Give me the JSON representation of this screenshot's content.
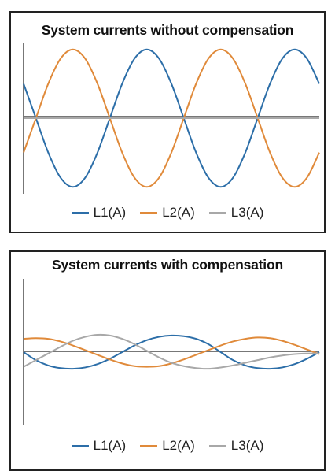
{
  "colors": {
    "L1": "#2c6ea8",
    "L2": "#e08a3a",
    "L3": "#a8a8a8",
    "axis": "#777777"
  },
  "chart_data": [
    {
      "type": "line",
      "title": "System currents without compensation",
      "xlabel": "",
      "ylabel": "",
      "grid": false,
      "legend_position": "bottom",
      "x": [
        0,
        30,
        60,
        90,
        120,
        150,
        180,
        210,
        240,
        270,
        300,
        330,
        360,
        390,
        420,
        450,
        480,
        510,
        540,
        570,
        600,
        630,
        660,
        690,
        720
      ],
      "ylim": [
        -1.1,
        1.1
      ],
      "series": [
        {
          "name": "L1(A)",
          "values": [
            0.5,
            0.0,
            -0.5,
            -0.866,
            -1.0,
            -0.866,
            -0.5,
            0.0,
            0.5,
            0.866,
            1.0,
            0.866,
            0.5,
            0.0,
            -0.5,
            -0.866,
            -1.0,
            -0.866,
            -0.5,
            0.0,
            0.5,
            0.866,
            1.0,
            0.866,
            0.5
          ]
        },
        {
          "name": "L2(A)",
          "values": [
            -0.5,
            0.0,
            0.5,
            0.866,
            1.0,
            0.866,
            0.5,
            0.0,
            -0.5,
            -0.866,
            -1.0,
            -0.866,
            -0.5,
            0.0,
            0.5,
            0.866,
            1.0,
            0.866,
            0.5,
            0.0,
            -0.5,
            -0.866,
            -1.0,
            -0.866,
            -0.5
          ]
        },
        {
          "name": "L3(A)",
          "values": [
            0,
            0,
            0,
            0,
            0,
            0,
            0,
            0,
            0,
            0,
            0,
            0,
            0,
            0,
            0,
            0,
            0,
            0,
            0,
            0,
            0,
            0,
            0,
            0,
            0
          ]
        }
      ]
    },
    {
      "type": "line",
      "title": "System currents with compensation",
      "xlabel": "",
      "ylabel": "",
      "grid": false,
      "legend_position": "bottom",
      "x": [
        0,
        30,
        60,
        90,
        120,
        150,
        180,
        210,
        240,
        270,
        300,
        330,
        360,
        390,
        420,
        450,
        480,
        510,
        540,
        570,
        600,
        630,
        660,
        690,
        720
      ],
      "ylim": [
        -1.1,
        1.1
      ],
      "series": [
        {
          "name": "L1(A)",
          "values": [
            0.0,
            -0.12,
            -0.2,
            -0.24,
            -0.25,
            -0.23,
            -0.18,
            -0.1,
            0.0,
            0.1,
            0.18,
            0.23,
            0.25,
            0.24,
            0.2,
            0.12,
            0.0,
            -0.12,
            -0.2,
            -0.24,
            -0.25,
            -0.23,
            -0.18,
            -0.1,
            0.0
          ]
        },
        {
          "name": "L2(A)",
          "values": [
            0.2,
            0.21,
            0.2,
            0.16,
            0.1,
            0.03,
            -0.04,
            -0.11,
            -0.17,
            -0.21,
            -0.22,
            -0.21,
            -0.17,
            -0.11,
            -0.04,
            0.03,
            0.1,
            0.16,
            0.2,
            0.22,
            0.21,
            0.17,
            0.11,
            0.04,
            -0.03
          ]
        },
        {
          "name": "L3(A)",
          "values": [
            -0.22,
            -0.12,
            -0.02,
            0.08,
            0.17,
            0.23,
            0.26,
            0.25,
            0.2,
            0.12,
            0.02,
            -0.08,
            -0.16,
            -0.21,
            -0.24,
            -0.25,
            -0.23,
            -0.2,
            -0.16,
            -0.12,
            -0.08,
            -0.05,
            -0.03,
            -0.02,
            -0.02
          ]
        }
      ]
    }
  ]
}
